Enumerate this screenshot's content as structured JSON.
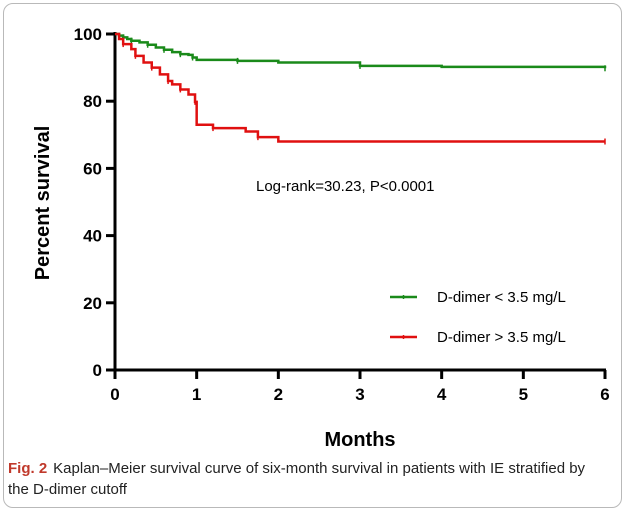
{
  "chart_data": {
    "type": "line",
    "xlabel": "Months",
    "ylabel": "Percent survival",
    "xlim": [
      0,
      6
    ],
    "ylim": [
      0,
      100
    ],
    "xticks": [
      0,
      1,
      2,
      3,
      4,
      5,
      6
    ],
    "yticks": [
      0,
      20,
      40,
      60,
      80,
      100
    ],
    "annotation": "Log-rank=30.23, P<0.0001",
    "legend_position": "bottom-right",
    "series": [
      {
        "name": "D-dimer < 3.5 mg/L",
        "color": "#1a8a1a",
        "x": [
          0,
          0.05,
          0.1,
          0.15,
          0.2,
          0.3,
          0.4,
          0.5,
          0.6,
          0.7,
          0.8,
          0.9,
          0.95,
          1.0,
          1.5,
          2.0,
          3.0,
          4.0,
          6.0
        ],
        "y": [
          100,
          99.5,
          99,
          98.5,
          98,
          97.5,
          96.8,
          96,
          95.3,
          94.6,
          94,
          93.8,
          93,
          92.3,
          92,
          91.5,
          90.5,
          90.2,
          89.8
        ]
      },
      {
        "name": "D-dimer > 3.5 mg/L",
        "color": "#e01010",
        "x": [
          0,
          0.05,
          0.1,
          0.2,
          0.25,
          0.35,
          0.45,
          0.55,
          0.65,
          0.7,
          0.8,
          0.9,
          0.98,
          1.0,
          1.2,
          1.6,
          1.75,
          2.0,
          6.0
        ],
        "y": [
          100,
          98.5,
          97,
          95.5,
          93.5,
          91.5,
          90,
          88,
          86,
          85,
          83.5,
          82,
          79.8,
          73,
          72,
          71,
          69.3,
          68,
          68
        ]
      }
    ]
  },
  "caption": {
    "label": "Fig. 2",
    "text": "Kaplan–Meier survival curve of six-month survival in patients with IE stratified by the D-dimer cutoff"
  }
}
